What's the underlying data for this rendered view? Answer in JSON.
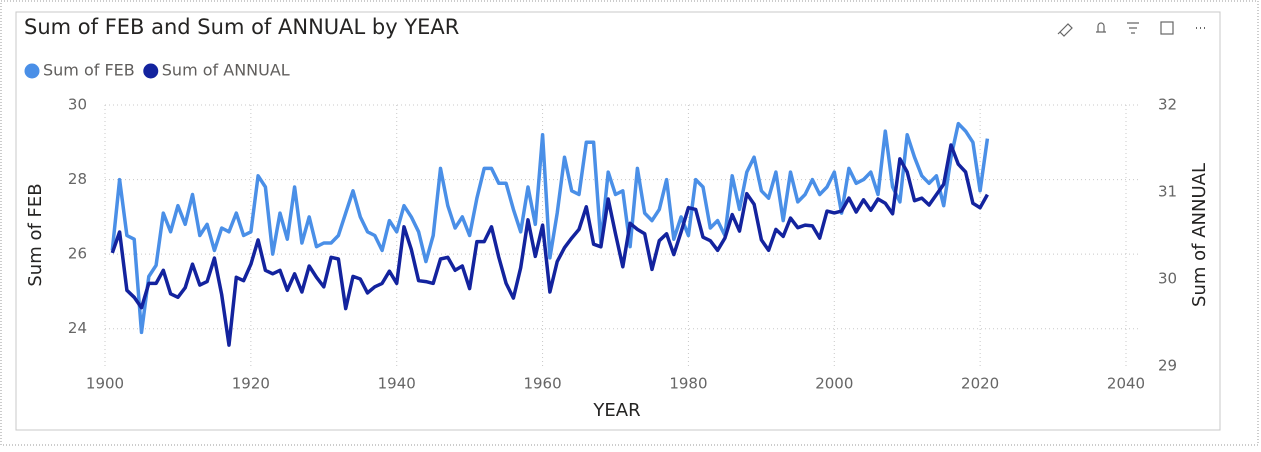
{
  "chart_data": {
    "type": "line",
    "title": "Sum of FEB and Sum of ANNUAL by YEAR",
    "x_label": "YEAR",
    "y_label": "Sum of FEB",
    "y2_label": "Sum of ANNUAL",
    "x": [
      1901,
      1902,
      1903,
      1904,
      1905,
      1906,
      1907,
      1908,
      1909,
      1910,
      1911,
      1912,
      1913,
      1914,
      1915,
      1916,
      1917,
      1918,
      1919,
      1920,
      1921,
      1922,
      1923,
      1924,
      1925,
      1926,
      1927,
      1928,
      1929,
      1930,
      1931,
      1932,
      1933,
      1934,
      1935,
      1936,
      1937,
      1938,
      1939,
      1940,
      1941,
      1942,
      1943,
      1944,
      1945,
      1946,
      1947,
      1948,
      1949,
      1950,
      1951,
      1952,
      1953,
      1954,
      1955,
      1956,
      1957,
      1958,
      1959,
      1960,
      1961,
      1962,
      1963,
      1964,
      1965,
      1966,
      1967,
      1968,
      1969,
      1970,
      1971,
      1972,
      1973,
      1974,
      1975,
      1976,
      1977,
      1978,
      1979,
      1980,
      1981,
      1982,
      1983,
      1984,
      1985,
      1986,
      1987,
      1988,
      1989,
      1990,
      1991,
      1992,
      1993,
      1994,
      1995,
      1996,
      1997,
      1998,
      1999,
      2000,
      2001,
      2002,
      2003,
      2004,
      2005,
      2006,
      2007,
      2008,
      2009,
      2010,
      2011,
      2012,
      2013,
      2014,
      2015,
      2016,
      2017,
      2018,
      2019,
      2020,
      2021
    ],
    "series": [
      {
        "name": "Sum of FEB",
        "color": "#4a8fe7",
        "values": [
          26.1,
          28.0,
          26.5,
          26.4,
          23.9,
          25.4,
          25.7,
          27.1,
          26.6,
          27.3,
          26.8,
          27.6,
          26.5,
          26.8,
          26.1,
          26.7,
          26.6,
          27.1,
          26.5,
          26.6,
          28.1,
          27.8,
          26.0,
          27.1,
          26.4,
          27.8,
          26.3,
          27.0,
          26.2,
          26.3,
          26.3,
          26.5,
          27.1,
          27.7,
          27.0,
          26.6,
          26.5,
          26.1,
          26.9,
          26.6,
          27.3,
          27.0,
          26.6,
          25.8,
          26.5,
          28.3,
          27.3,
          26.7,
          27.0,
          26.5,
          27.5,
          28.3,
          28.3,
          27.9,
          27.9,
          27.2,
          26.6,
          27.8,
          26.8,
          29.2,
          25.9,
          27.1,
          28.6,
          27.7,
          27.6,
          29.0,
          29.0,
          26.3,
          28.2,
          27.6,
          27.7,
          26.2,
          28.3,
          27.1,
          26.9,
          27.2,
          28.0,
          26.4,
          27.0,
          26.5,
          28.0,
          27.8,
          26.7,
          26.9,
          26.5,
          28.1,
          27.2,
          28.2,
          28.6,
          27.7,
          27.5,
          28.2,
          26.9,
          28.2,
          27.4,
          27.6,
          28.0,
          27.6,
          27.8,
          28.2,
          27.1,
          28.3,
          27.9,
          28.0,
          28.2,
          27.6,
          29.3,
          27.8,
          27.4,
          29.2,
          28.6,
          28.1,
          27.9,
          28.1,
          27.3,
          28.6,
          29.5,
          29.3,
          29.0,
          27.7,
          29.1
        ]
      },
      {
        "name": "Sum of ANNUAL",
        "color": "#13239e",
        "axis": "y2",
        "values": [
          30.3,
          30.54,
          29.87,
          29.79,
          29.67,
          29.95,
          29.95,
          30.1,
          29.83,
          29.79,
          29.9,
          30.17,
          29.93,
          29.97,
          30.24,
          29.82,
          29.24,
          30.02,
          29.98,
          30.17,
          30.45,
          30.1,
          30.06,
          30.1,
          29.87,
          30.06,
          29.85,
          30.15,
          30.02,
          29.91,
          30.25,
          30.23,
          29.66,
          30.03,
          30.0,
          29.84,
          29.91,
          29.95,
          30.09,
          29.95,
          30.6,
          30.34,
          29.98,
          29.97,
          29.95,
          30.23,
          30.25,
          30.1,
          30.15,
          29.89,
          30.43,
          30.43,
          30.6,
          30.25,
          29.95,
          29.78,
          30.13,
          30.68,
          30.26,
          30.62,
          29.85,
          30.2,
          30.36,
          30.47,
          30.57,
          30.83,
          30.4,
          30.37,
          30.92,
          30.52,
          30.14,
          30.64,
          30.57,
          30.52,
          30.11,
          30.44,
          30.52,
          30.28,
          30.54,
          30.82,
          30.8,
          30.48,
          30.44,
          30.33,
          30.47,
          30.74,
          30.55,
          30.98,
          30.86,
          30.45,
          30.33,
          30.57,
          30.49,
          30.7,
          30.59,
          30.62,
          30.61,
          30.47,
          30.78,
          30.76,
          30.78,
          30.93,
          30.77,
          30.91,
          30.79,
          30.92,
          30.87,
          30.75,
          31.38,
          31.23,
          30.9,
          30.93,
          30.85,
          30.97,
          31.09,
          31.54,
          31.32,
          31.23,
          30.87,
          30.82,
          30.97
        ]
      }
    ],
    "xlim": [
      1900,
      2040
    ],
    "xticks": [
      1900,
      1920,
      1940,
      1960,
      1980,
      2000,
      2020,
      2040
    ],
    "ylim": [
      23,
      30
    ],
    "yticks": [
      24,
      26,
      28,
      30
    ],
    "y2lim": [
      29,
      32
    ],
    "y2ticks": [
      29,
      30,
      31,
      32
    ],
    "grid": true,
    "legend": "top-left"
  }
}
